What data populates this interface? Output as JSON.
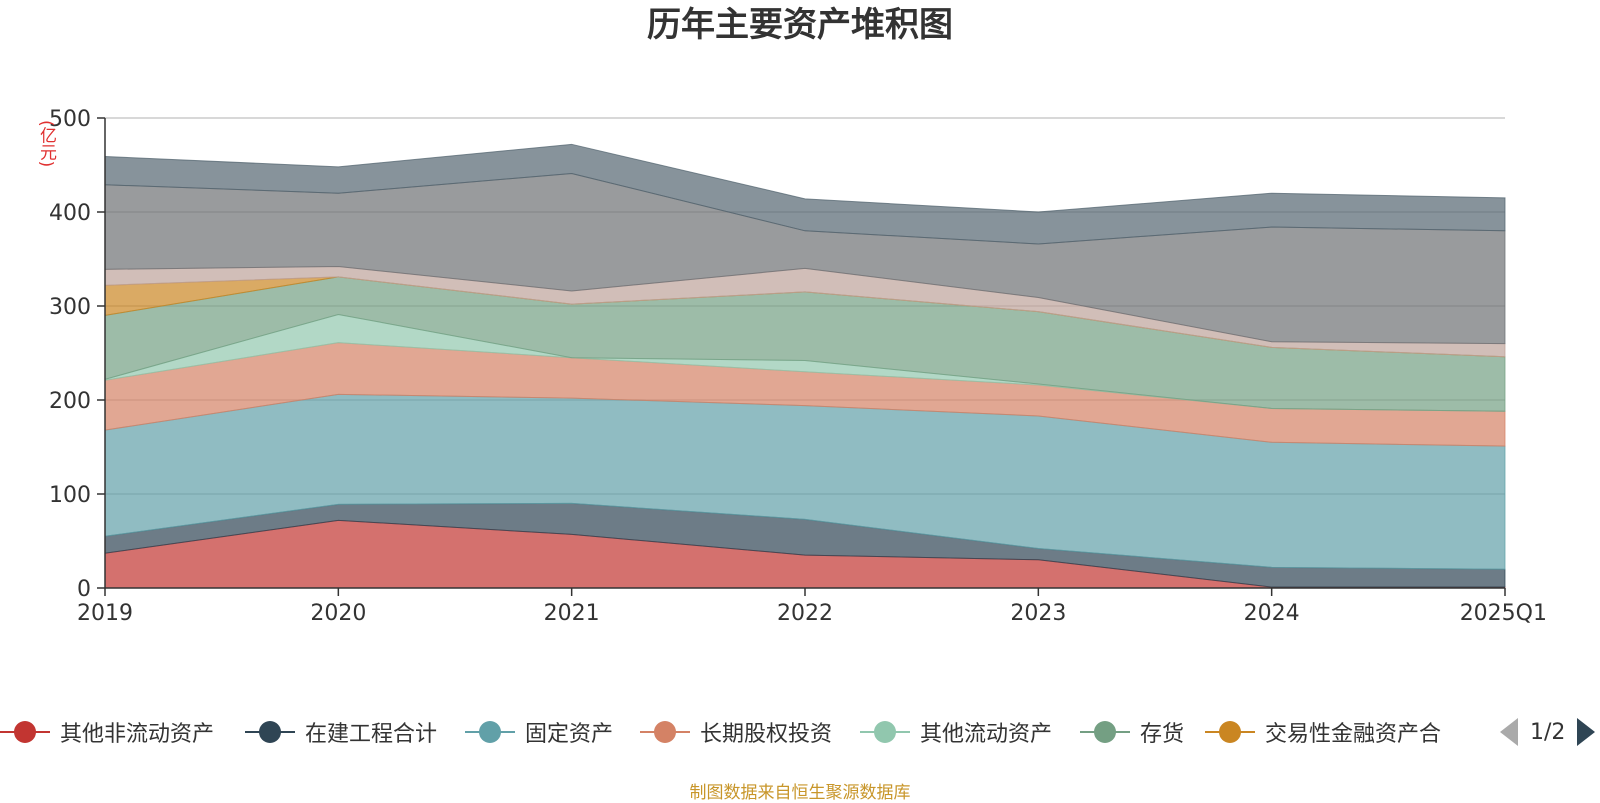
{
  "title": "历年主要资产堆积图",
  "unit_label": "(亿元)",
  "source_note": "制图数据来自恒生聚源数据库",
  "pager": {
    "text": "1/2"
  },
  "chart_data": {
    "type": "area",
    "stacked": true,
    "categories": [
      "2019",
      "2020",
      "2021",
      "2022",
      "2023",
      "2024",
      "2025Q1"
    ],
    "ylim": [
      0,
      500
    ],
    "yticks": [
      0,
      100,
      200,
      300,
      400,
      500
    ],
    "grid": true,
    "legend_position": "bottom",
    "series": [
      {
        "name": "其他非流动资产",
        "color": "#c23531",
        "legend": true,
        "values": [
          37,
          72,
          57,
          35,
          30,
          1,
          1
        ]
      },
      {
        "name": "在建工程合计",
        "color": "#2f4554",
        "legend": true,
        "values": [
          18,
          17,
          33,
          38,
          12,
          21,
          19
        ]
      },
      {
        "name": "固定资产",
        "color": "#61a0a8",
        "legend": true,
        "values": [
          113,
          117,
          112,
          121,
          141,
          133,
          131
        ]
      },
      {
        "name": "长期股权投资",
        "color": "#d48265",
        "legend": true,
        "values": [
          53,
          55,
          43,
          36,
          33,
          36,
          37
        ]
      },
      {
        "name": "其他流动资产",
        "color": "#91c7ae",
        "legend": true,
        "values": [
          1,
          30,
          0,
          12,
          1,
          0,
          0
        ]
      },
      {
        "name": "存货",
        "color": "#749f83",
        "legend": true,
        "values": [
          68,
          40,
          57,
          73,
          77,
          65,
          58
        ]
      },
      {
        "name": "交易性金融资产合",
        "color": "#ca8622",
        "legend": true,
        "values": [
          32,
          0,
          0,
          0,
          0,
          0,
          0
        ]
      },
      {
        "color": "#bda29a",
        "legend": false,
        "values": [
          17,
          11,
          14,
          25,
          15,
          6,
          14
        ]
      },
      {
        "color": "#6e7074",
        "legend": false,
        "values": [
          90,
          78,
          125,
          40,
          57,
          122,
          120
        ]
      },
      {
        "color": "#546570",
        "legend": false,
        "values": [
          30,
          28,
          31,
          34,
          34,
          36,
          35
        ]
      }
    ]
  }
}
